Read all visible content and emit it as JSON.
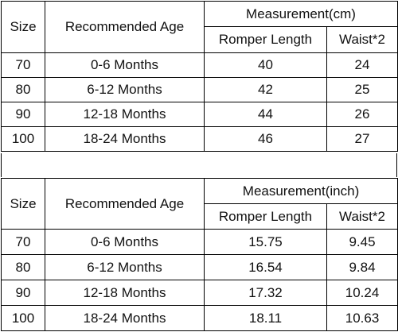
{
  "tables": [
    {
      "headers": {
        "size": "Size",
        "age": "Recommended Age",
        "measurement": "Measurement(cm)",
        "romper": "Romper Length",
        "waist": "Waist*2"
      },
      "rows": [
        {
          "size": "70",
          "age": "0-6 Months",
          "romper": "40",
          "waist": "24"
        },
        {
          "size": "80",
          "age": "6-12 Months",
          "romper": "42",
          "waist": "25"
        },
        {
          "size": "90",
          "age": "12-18 Months",
          "romper": "44",
          "waist": "26"
        },
        {
          "size": "100",
          "age": "18-24 Months",
          "romper": "46",
          "waist": "27"
        }
      ]
    },
    {
      "headers": {
        "size": "Size",
        "age": "Recommended Age",
        "measurement": "Measurement(inch)",
        "romper": "Romper Length",
        "waist": "Waist*2"
      },
      "rows": [
        {
          "size": "70",
          "age": "0-6 Months",
          "romper": "15.75",
          "waist": "9.45"
        },
        {
          "size": "80",
          "age": "6-12 Months",
          "romper": "16.54",
          "waist": "9.84"
        },
        {
          "size": "90",
          "age": "12-18 Months",
          "romper": "17.32",
          "waist": "10.24"
        },
        {
          "size": "100",
          "age": "18-24 Months",
          "romper": "18.11",
          "waist": "10.63"
        }
      ]
    }
  ]
}
